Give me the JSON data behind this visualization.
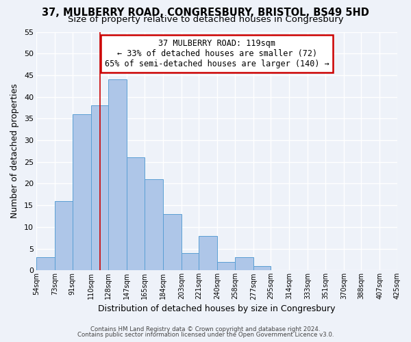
{
  "title1": "37, MULBERRY ROAD, CONGRESBURY, BRISTOL, BS49 5HD",
  "title2": "Size of property relative to detached houses in Congresbury",
  "xlabel": "Distribution of detached houses by size in Congresbury",
  "ylabel": "Number of detached properties",
  "bar_values": [
    3,
    16,
    36,
    38,
    44,
    26,
    21,
    13,
    4,
    8,
    2,
    3,
    1,
    0,
    0,
    0,
    0,
    0,
    0,
    0
  ],
  "bin_edges": [
    54,
    73,
    91,
    110,
    128,
    147,
    165,
    184,
    203,
    221,
    240,
    258,
    277,
    295,
    314,
    333,
    351,
    370,
    388,
    407,
    425
  ],
  "tick_labels": [
    "54sqm",
    "73sqm",
    "91sqm",
    "110sqm",
    "128sqm",
    "147sqm",
    "165sqm",
    "184sqm",
    "203sqm",
    "221sqm",
    "240sqm",
    "258sqm",
    "277sqm",
    "295sqm",
    "314sqm",
    "333sqm",
    "351sqm",
    "370sqm",
    "388sqm",
    "407sqm",
    "425sqm"
  ],
  "bar_color": "#aec6e8",
  "bar_edge_color": "#5a9fd4",
  "property_value": 119,
  "vline_color": "#cc0000",
  "ylim": [
    0,
    55
  ],
  "yticks": [
    0,
    5,
    10,
    15,
    20,
    25,
    30,
    35,
    40,
    45,
    50,
    55
  ],
  "annotation_title": "37 MULBERRY ROAD: 119sqm",
  "annotation_line1": "← 33% of detached houses are smaller (72)",
  "annotation_line2": "65% of semi-detached houses are larger (140) →",
  "annotation_box_color": "#ffffff",
  "annotation_box_edge": "#cc0000",
  "footer1": "Contains HM Land Registry data © Crown copyright and database right 2024.",
  "footer2": "Contains public sector information licensed under the Open Government Licence v3.0.",
  "bg_color": "#eef2f9",
  "grid_color": "#ffffff",
  "title1_fontsize": 10.5,
  "title2_fontsize": 9.5
}
